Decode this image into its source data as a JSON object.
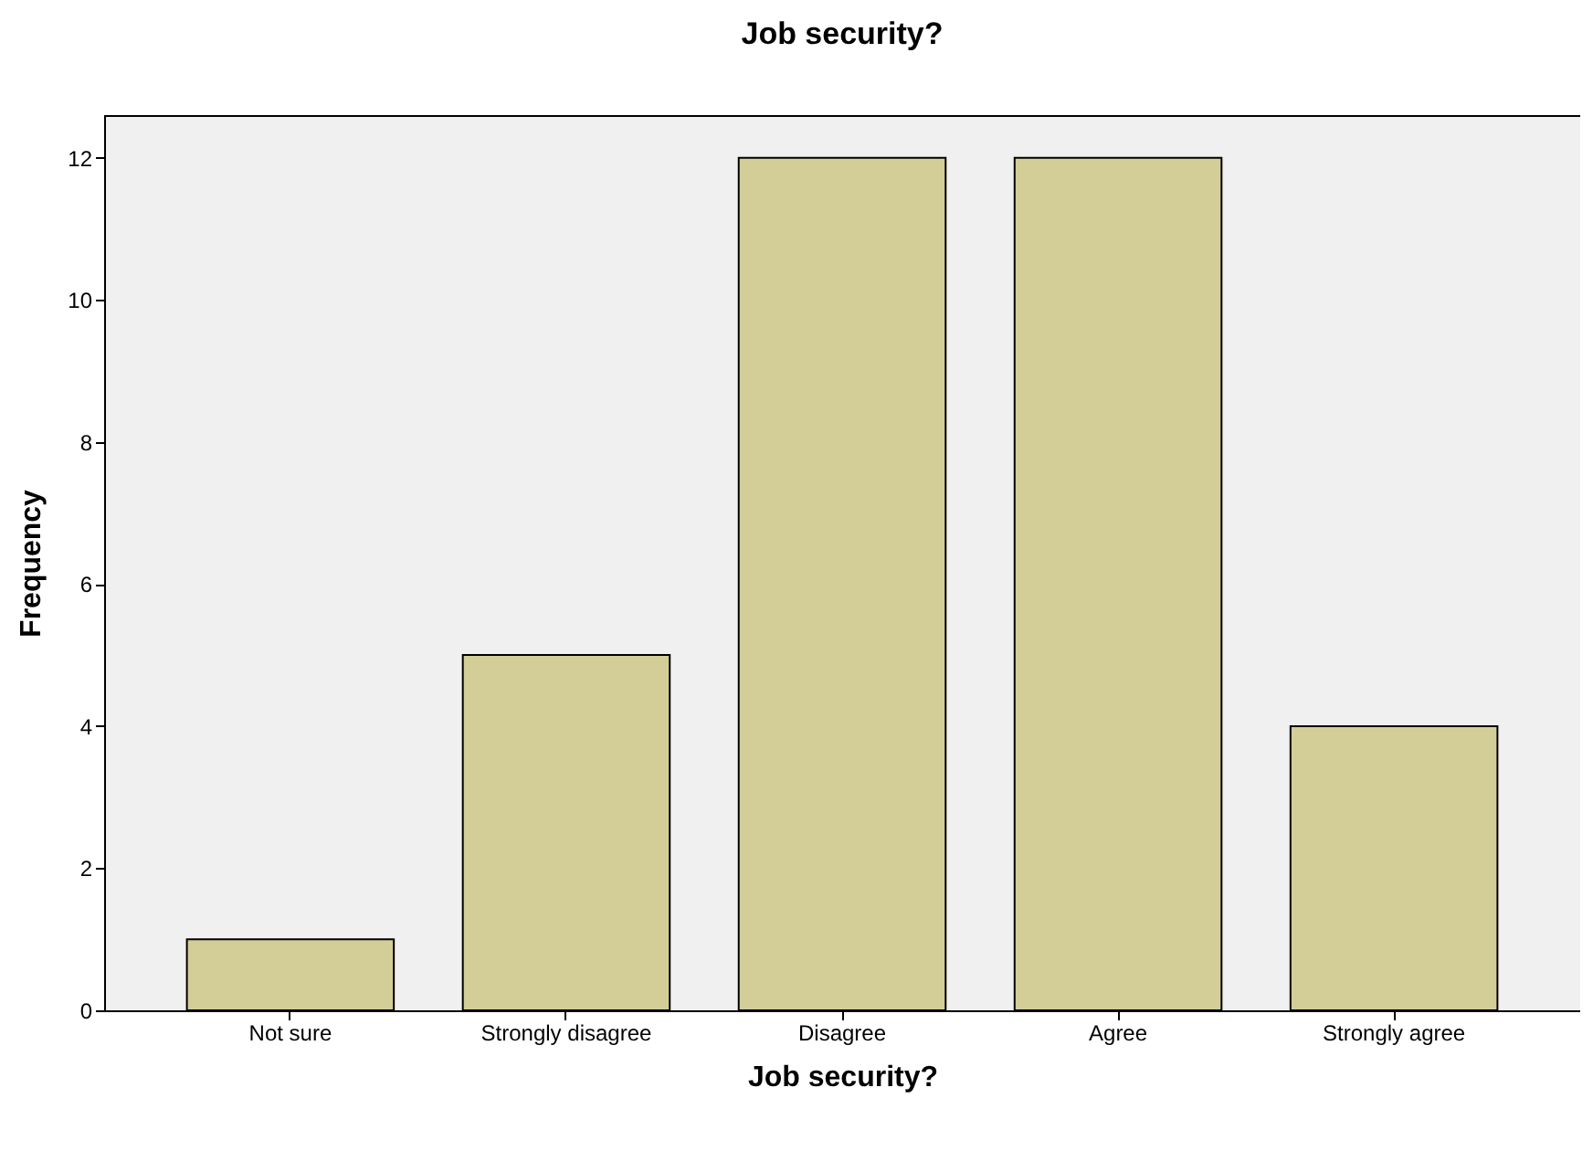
{
  "chart_data": {
    "type": "bar",
    "title": "Job security?",
    "xlabel": "Job security?",
    "ylabel": "Frequency",
    "categories": [
      "Not sure",
      "Strongly disagree",
      "Disagree",
      "Agree",
      "Strongly agree"
    ],
    "values": [
      1,
      5,
      12,
      12,
      4
    ],
    "color": "#d3ce97",
    "ylim": [
      0,
      12.6
    ],
    "yticks": [
      0,
      2,
      4,
      6,
      8,
      10,
      12
    ],
    "grid": false
  }
}
